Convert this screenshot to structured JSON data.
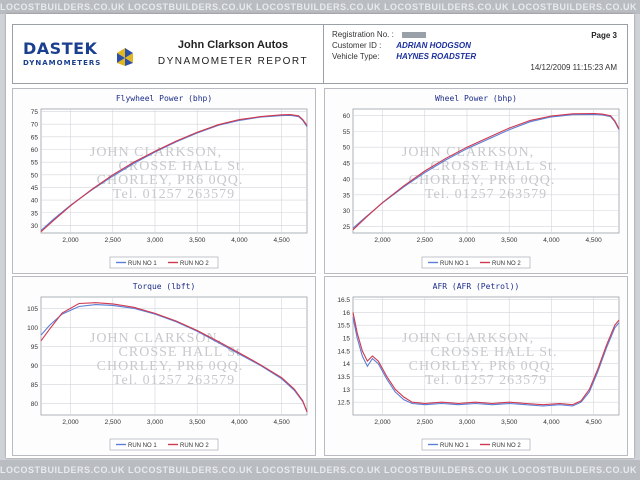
{
  "watermark_strip": "LOCOSTBUILDERS.CO.UK   LOCOSTBUILDERS.CO.UK   LOCOSTBUILDERS.CO.UK   LOCOSTBUILDERS.CO.UK   LOCOSTBUILDERS.CO.UK",
  "header": {
    "logo_main": "DASTEK",
    "logo_sub": "DYNAMOMETERS",
    "company": "John Clarkson Autos",
    "report_title": "DYNAMOMETER REPORT",
    "registration_label": "Registration No. :",
    "customer_label": "Customer ID :",
    "customer_value": "ADRIAN HODGSON",
    "vehicle_label": "Vehicle Type:",
    "vehicle_value": "HAYNES ROADSTER",
    "page": "Page 3",
    "timestamp": "14/12/2009 11:15:23 AM"
  },
  "stamp_lines": [
    "JOHN CLARKSON,",
    "CROSSE HALL St.",
    "CHORLEY, PR6 0QQ.",
    "Tel. 01257 263579"
  ],
  "colors": {
    "run1": "#5b7fd6",
    "run2": "#d0384f",
    "grid": "#d2d5d9",
    "title": "#1d2d8a"
  },
  "chart_data": [
    {
      "type": "line",
      "title": "Flywheel Power (bhp)",
      "x_tick_labels": [
        "2,000",
        "2,500",
        "3,000",
        "3,500",
        "4,000",
        "4,500"
      ],
      "y_tick_labels": [
        "30",
        "35",
        "40",
        "45",
        "50",
        "55",
        "60",
        "65",
        "70",
        "75"
      ],
      "xlim": [
        1650,
        4800
      ],
      "ylim": [
        27,
        76
      ],
      "legend": "bottom",
      "grid": true,
      "series": [
        {
          "name": "RUN NO 1",
          "x": [
            1650,
            1800,
            2000,
            2250,
            2500,
            2750,
            3000,
            3250,
            3500,
            3750,
            4000,
            4250,
            4500,
            4600,
            4700,
            4750,
            4800
          ],
          "y": [
            28,
            32.5,
            38,
            44,
            49.5,
            54.5,
            59,
            63,
            66.5,
            69.5,
            71.5,
            72.8,
            73.4,
            73.5,
            73,
            71.5,
            69
          ]
        },
        {
          "name": "RUN NO 2",
          "x": [
            1650,
            1800,
            2000,
            2250,
            2500,
            2750,
            3000,
            3250,
            3500,
            3750,
            4000,
            4250,
            4500,
            4600,
            4700,
            4750,
            4800
          ],
          "y": [
            27.5,
            32,
            37.8,
            44.2,
            50,
            55,
            59.3,
            63.3,
            66.8,
            69.8,
            71.8,
            73,
            73.7,
            73.8,
            73.3,
            71.8,
            69.5
          ]
        }
      ]
    },
    {
      "type": "line",
      "title": "Wheel Power (bhp)",
      "x_tick_labels": [
        "2,000",
        "2,500",
        "3,000",
        "3,500",
        "4,000",
        "4,500"
      ],
      "y_tick_labels": [
        "25",
        "30",
        "35",
        "40",
        "45",
        "50",
        "55",
        "60"
      ],
      "xlim": [
        1650,
        4800
      ],
      "ylim": [
        23,
        62
      ],
      "legend": "bottom",
      "grid": true,
      "series": [
        {
          "name": "RUN NO 1",
          "x": [
            1650,
            1800,
            2000,
            2250,
            2500,
            2750,
            3000,
            3250,
            3500,
            3750,
            4000,
            4250,
            4500,
            4600,
            4700,
            4750,
            4800
          ],
          "y": [
            24.5,
            28,
            32.5,
            37.5,
            42,
            46,
            49.5,
            52.5,
            55.5,
            58,
            59.5,
            60.2,
            60.3,
            60.1,
            59.6,
            58,
            55.5
          ]
        },
        {
          "name": "RUN NO 2",
          "x": [
            1650,
            1800,
            2000,
            2250,
            2500,
            2750,
            3000,
            3250,
            3500,
            3750,
            4000,
            4250,
            4500,
            4600,
            4700,
            4750,
            4800
          ],
          "y": [
            24,
            27.8,
            32.6,
            37.8,
            42.5,
            46.5,
            50,
            53,
            56,
            58.4,
            59.8,
            60.5,
            60.6,
            60.4,
            59.9,
            58.3,
            55.8
          ]
        }
      ]
    },
    {
      "type": "line",
      "title": "Torque (lbft)",
      "x_tick_labels": [
        "2,000",
        "2,500",
        "3,000",
        "3,500",
        "4,000",
        "4,500"
      ],
      "y_tick_labels": [
        "80",
        "85",
        "90",
        "95",
        "100",
        "105"
      ],
      "xlim": [
        1650,
        4800
      ],
      "ylim": [
        77,
        108
      ],
      "legend": "bottom",
      "grid": true,
      "series": [
        {
          "name": "RUN NO 1",
          "x": [
            1650,
            1750,
            1900,
            2100,
            2300,
            2500,
            2750,
            3000,
            3250,
            3500,
            3750,
            4000,
            4250,
            4500,
            4650,
            4750,
            4800
          ],
          "y": [
            98,
            100.5,
            103.5,
            105.5,
            106,
            105.8,
            105,
            103.5,
            101.5,
            99,
            96,
            93,
            90,
            86.5,
            83.5,
            80.5,
            78
          ]
        },
        {
          "name": "RUN NO 2",
          "x": [
            1650,
            1750,
            1900,
            2100,
            2300,
            2500,
            2750,
            3000,
            3250,
            3500,
            3750,
            4000,
            4250,
            4500,
            4650,
            4750,
            4800
          ],
          "y": [
            96.5,
            99.5,
            103.8,
            106.3,
            106.5,
            106.2,
            105.3,
            103.7,
            101.7,
            99.2,
            96.3,
            93.3,
            90.2,
            86.8,
            83.8,
            80.7,
            77.8
          ]
        }
      ]
    },
    {
      "type": "line",
      "title": "AFR (AFR (Petrol))",
      "x_tick_labels": [
        "2,000",
        "2,500",
        "3,000",
        "3,500",
        "4,000",
        "4,500"
      ],
      "y_tick_labels": [
        "12.5",
        "13",
        "13.5",
        "14",
        "14.5",
        "15",
        "15.5",
        "16",
        "16.5"
      ],
      "xlim": [
        1650,
        4800
      ],
      "ylim": [
        12,
        16.6
      ],
      "legend": "bottom",
      "grid": true,
      "series": [
        {
          "name": "RUN NO 1",
          "x": [
            1650,
            1700,
            1760,
            1820,
            1880,
            1950,
            2050,
            2150,
            2250,
            2350,
            2500,
            2700,
            2900,
            3100,
            3300,
            3500,
            3700,
            3900,
            4100,
            4250,
            4350,
            4450,
            4550,
            4650,
            4750,
            4800
          ],
          "y": [
            15.8,
            15,
            14.3,
            13.9,
            14.2,
            14,
            13.4,
            12.9,
            12.6,
            12.45,
            12.4,
            12.45,
            12.4,
            12.45,
            12.4,
            12.45,
            12.4,
            12.35,
            12.4,
            12.35,
            12.5,
            12.9,
            13.7,
            14.6,
            15.4,
            15.6
          ]
        },
        {
          "name": "RUN NO 2",
          "x": [
            1650,
            1700,
            1760,
            1820,
            1880,
            1950,
            2050,
            2150,
            2250,
            2350,
            2500,
            2700,
            2900,
            3100,
            3300,
            3500,
            3700,
            3900,
            4100,
            4250,
            4350,
            4450,
            4550,
            4650,
            4750,
            4800
          ],
          "y": [
            16,
            15.2,
            14.5,
            14.1,
            14.3,
            14.1,
            13.5,
            13,
            12.7,
            12.5,
            12.45,
            12.5,
            12.45,
            12.5,
            12.45,
            12.5,
            12.45,
            12.4,
            12.45,
            12.4,
            12.55,
            13,
            13.8,
            14.7,
            15.5,
            15.7
          ]
        }
      ]
    }
  ]
}
